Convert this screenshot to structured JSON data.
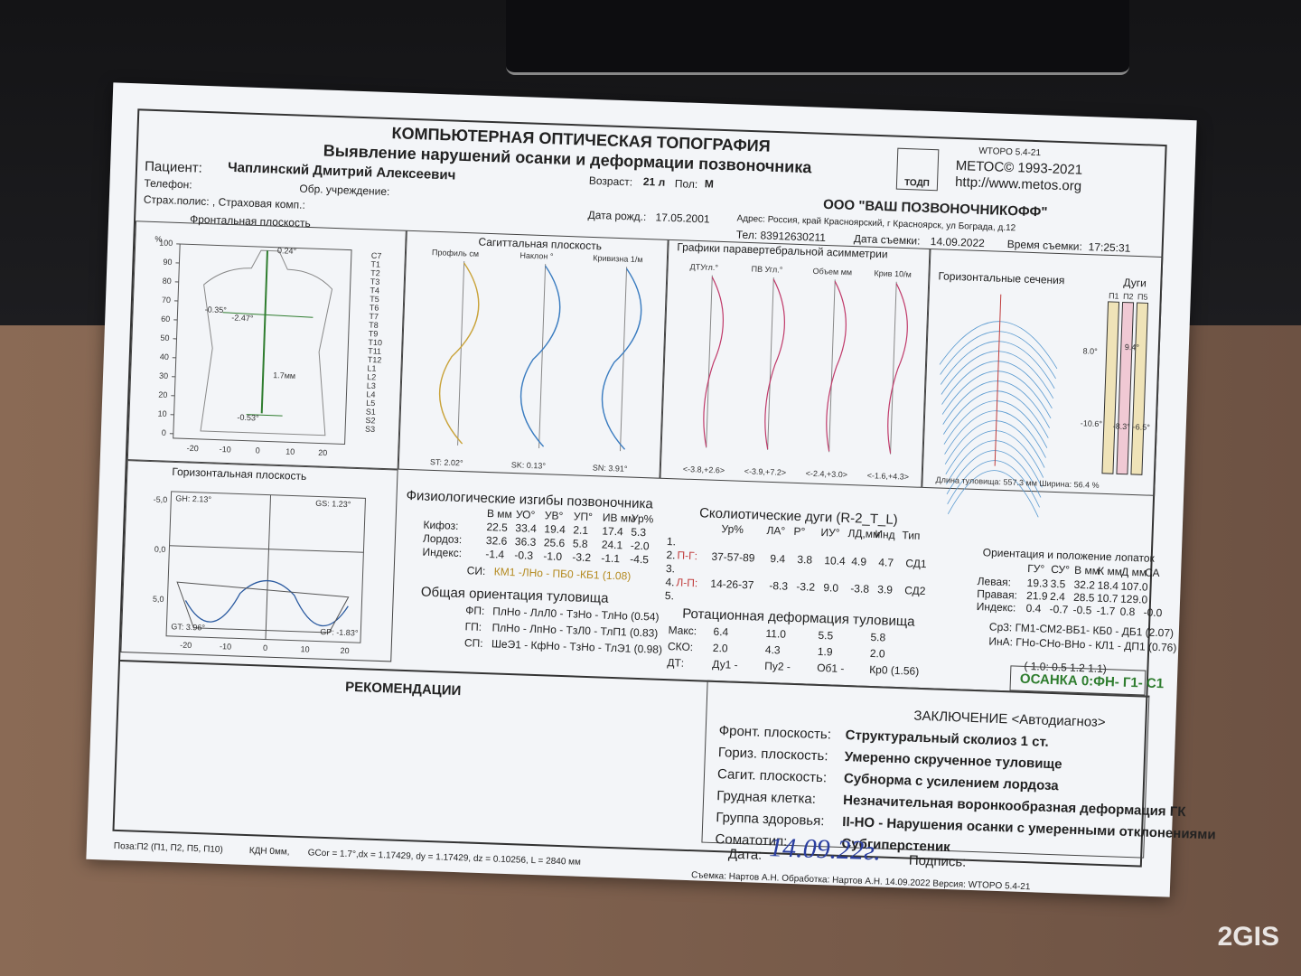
{
  "header": {
    "title": "КОМПЬЮТЕРНАЯ ОПТИЧЕСКАЯ ТОПОГРАФИЯ",
    "subtitle": "Выявление нарушений осанки и деформации позвоночника",
    "version": "WTOPO 5.4-21",
    "copyright": "МЕТОС© 1993-2021",
    "url": "http://www.metos.org",
    "logo": "ТОДП"
  },
  "patient": {
    "name_label": "Пациент:",
    "name": "Чаплинский Дмитрий Алексеевич",
    "age_label": "Возраст:",
    "age": "21 л",
    "sex_label": "Пол:",
    "sex": "М",
    "phone_label": "Телефон:",
    "institution_label": "Обр. учреждение:",
    "birth_label": "Дата рожд.:",
    "birth": "17.05.2001",
    "insurance": "Страх.полис: , Страховая комп.:"
  },
  "clinic": {
    "name": "ООО \"ВАШ ПОЗВОНОЧНИКОФФ\"",
    "address": "Адрес: Россия, край Красноярский, г Красноярск, ул Бограда, д.12",
    "phone": "Тел: 83912630211",
    "date_label": "Дата съемки:",
    "date": "14.09.2022",
    "time_label": "Время съемки:",
    "time": "17:25:31"
  },
  "panels": {
    "frontal": "Фронтальная плоскость",
    "sagittal": "Сагиттальная плоскость",
    "paravertebral": "Графики паравертебральной асимметрии",
    "sections": "Горизонтальные сечения",
    "arcs": "Дуги",
    "horizontal": "Горизонтальная плоскость"
  },
  "frontal": {
    "y_unit": "%",
    "yticks": [
      "0",
      "10",
      "20",
      "30",
      "40",
      "50",
      "60",
      "70",
      "80",
      "90",
      "100"
    ],
    "xticks": [
      "-20",
      "-10",
      "0",
      "10",
      "20"
    ],
    "annotations": [
      "0.24°",
      "-0.35°",
      "-2.47°",
      "1.7мм",
      "-0.53°"
    ],
    "vertebrae": [
      "C7",
      "T1",
      "T2",
      "T3",
      "T4",
      "T5",
      "T6",
      "T7",
      "T8",
      "T9",
      "T10",
      "T11",
      "T12",
      "L1",
      "L2",
      "L3",
      "L4",
      "L5",
      "S1",
      "S2",
      "S3"
    ]
  },
  "sagittal": {
    "headers": [
      "Профиль см",
      "Наклон °",
      "Кривизна 1/м"
    ],
    "summary": [
      "ST: 2.02°",
      "SK: 0.13°",
      "SN: 3.91°"
    ]
  },
  "paravertebral": {
    "headers": [
      "ДТУгл.°",
      "ПВ Угл.°",
      "Объем мм",
      "Крив 10/м"
    ],
    "ranges": [
      "<-3.8,+2.6>",
      "<-3.9,+7.2>",
      "<-2.4,+3.0>",
      "<-1.6,+4.3>"
    ]
  },
  "sections": {
    "footer": "Длина туловища: 557.3 мм   Ширина: 56.4 %",
    "arc_headers": [
      "П1",
      "П2",
      "П5"
    ],
    "arc_labels": [
      "8.0°",
      "9.4°",
      "-10.6°",
      "-8.3°",
      "-6.5°"
    ]
  },
  "horizontal": {
    "labels": [
      "GH: 2.13°",
      "GS: 1.23°",
      "GT: 3.96°",
      "GP: -1.83°"
    ],
    "yticks": [
      "-5,0",
      "0,0",
      "5,0"
    ],
    "xticks": [
      "-20",
      "-10",
      "0",
      "10",
      "20"
    ]
  },
  "physio": {
    "title": "Физиологические изгибы позвоночника",
    "columns": [
      "В мм",
      "УО°",
      "УВ°",
      "УП°",
      "ИВ мм",
      "Ур%"
    ],
    "rows": [
      {
        "label": "Кифоз:",
        "cells": [
          "22.5",
          "33.4",
          "19.4",
          "2.1",
          "17.4",
          "5.3"
        ]
      },
      {
        "label": "Лордоз:",
        "cells": [
          "32.6",
          "36.3",
          "25.6",
          "5.8",
          "24.1",
          "-2.0"
        ]
      },
      {
        "label": "Индекс:",
        "cells": [
          "-1.4",
          "-0.3",
          "-1.0",
          "-3.2",
          "-1.1",
          "-4.5"
        ]
      }
    ],
    "si_label": "СИ:",
    "si": "КМ1 -ЛНо - ПБ0 -КБ1 (1.08)"
  },
  "orientation": {
    "title": "Общая ориентация туловища",
    "rows": [
      {
        "label": "ФП:",
        "value": "ПлНо - ЛлЛ0 - ТзНо - ТлНо (0.54)"
      },
      {
        "label": "ГП:",
        "value": "ПлНо - ЛпНо - ТзЛ0 - ТлП1 (0.83)"
      },
      {
        "label": "СП:",
        "value": "ШеЭ1 - КфНо - ТзНо - ТлЭ1 (0.98)"
      }
    ]
  },
  "scolio": {
    "title": "Сколиотические дуги (R-2_T_L)",
    "columns": [
      "Ур%",
      "ЛА°",
      "Р°",
      "ИУ°",
      "ЛД,мм",
      "Инд",
      "Тип"
    ],
    "rows": [
      {
        "label": "1."
      },
      {
        "label": "2.",
        "arc": "П-Г:",
        "cells": [
          "37-57-89",
          "9.4",
          "3.8",
          "10.4",
          "4.9",
          "4.7",
          "СД1"
        ]
      },
      {
        "label": "3."
      },
      {
        "label": "4.",
        "arc": "Л-П:",
        "cells": [
          "14-26-37",
          "-8.3",
          "-3.2",
          "9.0",
          "-3.8",
          "3.9",
          "СД2"
        ]
      },
      {
        "label": "5."
      }
    ]
  },
  "rotation": {
    "title": "Ротационная деформация туловища",
    "rows": [
      {
        "label": "Макс:",
        "cells": [
          "6.4",
          "11.0",
          "5.5",
          "5.8"
        ]
      },
      {
        "label": "СКО:",
        "cells": [
          "2.0",
          "4.3",
          "1.9",
          "2.0"
        ]
      },
      {
        "label": "ДТ:",
        "cells": [
          "Ду1 -",
          "Пу2 -",
          "Об1 -",
          "Кр0 (1.56)"
        ]
      }
    ]
  },
  "blades": {
    "title": "Ориентация и положение лопаток",
    "columns": [
      "ГУ°",
      "СУ°",
      "В мм",
      "К мм",
      "Д мм",
      "СА"
    ],
    "rows": [
      {
        "label": "Левая:",
        "cells": [
          "19.3",
          "3.5",
          "32.2",
          "18.4",
          "107.0"
        ]
      },
      {
        "label": "Правая:",
        "cells": [
          "21.9",
          "2.4",
          "28.5",
          "10.7",
          "129.0"
        ]
      },
      {
        "label": "Индекс:",
        "cells": [
          "0.4",
          "-0.7",
          "-0.5",
          "-1.7",
          "0.8",
          "-0.0"
        ]
      }
    ],
    "extra": [
      "Ср3: ГМ1-СМ2-ВБ1- КБ0 - ДБ1 (2.07)",
      "ИнА: ГНо-СНо-ВНо - КЛ1 - ДП1 (0.76)",
      "( 1.0: 0.5  1.2  1.1)"
    ],
    "posture": "ОСАНКА 0:ФН- Г1- С1"
  },
  "recommendations": {
    "title": "РЕКОМЕНДАЦИИ"
  },
  "conclusion": {
    "title": "ЗАКЛЮЧЕНИЕ  <Автодиагноз>",
    "rows": [
      {
        "label": "Фронт. плоскость:",
        "value": "Структуральный сколиоз 1 ст."
      },
      {
        "label": "Гориз. плоскость:",
        "value": "Умеренно скрученное туловище"
      },
      {
        "label": "Сагит. плоскость:",
        "value": "Субнорма с усилением лордоза"
      },
      {
        "label": "Грудная клетка:",
        "value": "Незначительная воронкообразная деформация ГК"
      },
      {
        "label": "Группа здоровья:",
        "value": "II-НО - Нарушения осанки с умеренными отклонениями"
      },
      {
        "label": "Соматотип:",
        "value": "Субгиперстеник"
      }
    ],
    "date_label": "Дата:",
    "date": "14.09.22г.",
    "sign_label": "Подпись:"
  },
  "footer": [
    "Поза:П2 (П1, П2, П5, П10)",
    "КДН 0мм,",
    "GCor = 1.7°,dx = 1.17429, dy = 1.17429, dz = 0.10256, L = 2840 мм",
    "Съемка: Нартов А.Н.  Обработка:  Нартов А.Н.  14.09.2022  Версия: WTOPO 5.4-21"
  ],
  "watermark": "2GIS"
}
